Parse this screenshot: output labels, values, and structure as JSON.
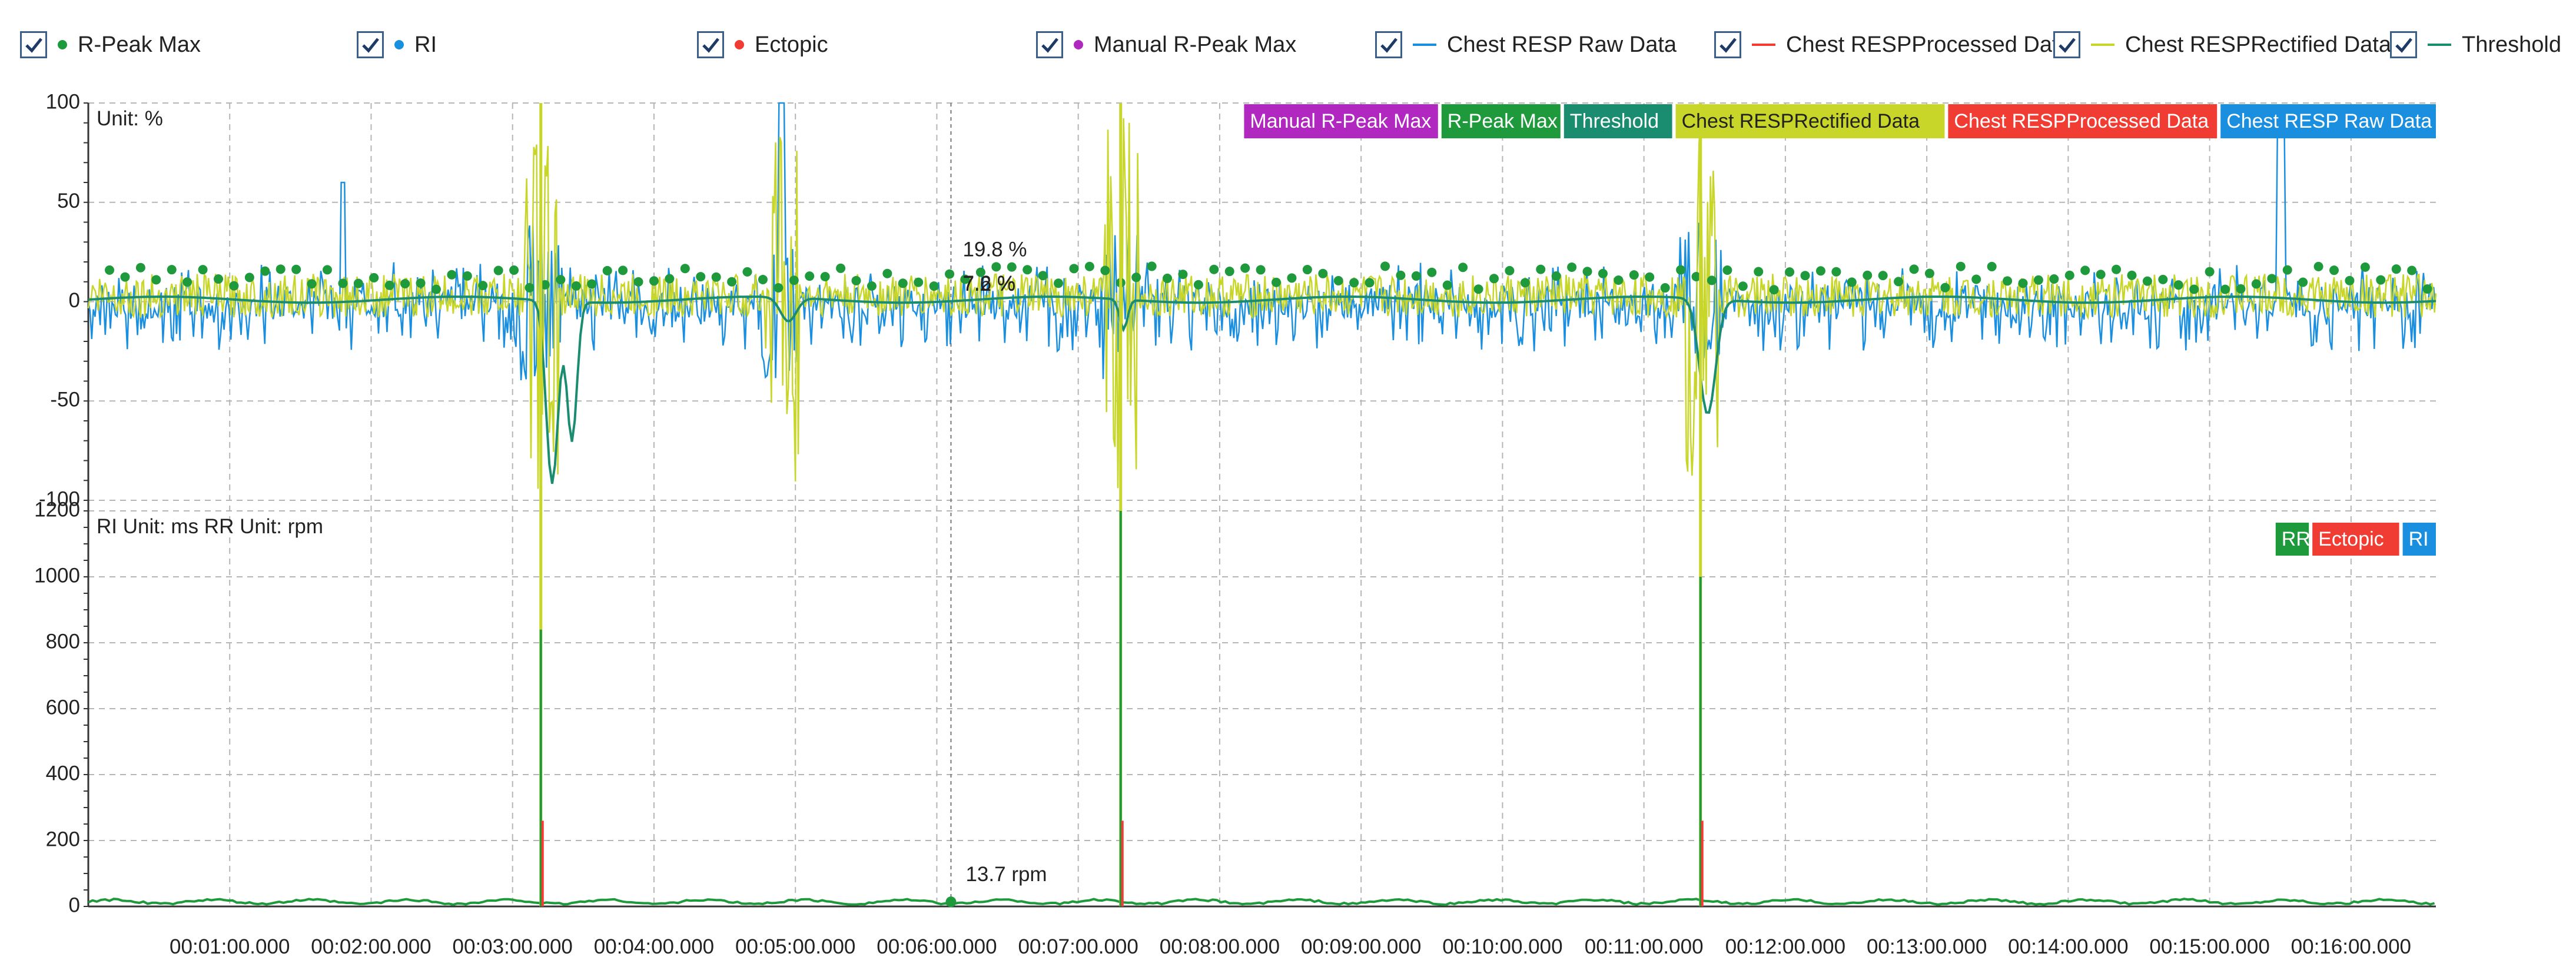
{
  "legend": [
    {
      "label": "R-Peak Max",
      "color": "#1e9a3c",
      "marker": "dot",
      "checked": true
    },
    {
      "label": "RI",
      "color": "#1a8fe0",
      "marker": "dot",
      "checked": true
    },
    {
      "label": "Ectopic",
      "color": "#f03c32",
      "marker": "dot",
      "checked": true
    },
    {
      "label": "Manual R-Peak Max",
      "color": "#b028c0",
      "marker": "dot",
      "checked": true
    },
    {
      "label": "Chest RESP Raw Data",
      "color": "#1a8fe0",
      "marker": "line",
      "checked": true
    },
    {
      "label": "Chest RESPProcessed Data",
      "color": "#f03c32",
      "marker": "line",
      "checked": true
    },
    {
      "label": "Chest RESPRectified Data",
      "color": "#c8d62a",
      "marker": "line",
      "checked": true
    },
    {
      "label": "Threshold",
      "color": "#1a8c70",
      "marker": "line",
      "checked": true
    }
  ],
  "chart_data": [
    {
      "type": "line",
      "panel": "top",
      "unit_label": "Unit: %",
      "ylim": [
        -100,
        100
      ],
      "yticks": [
        "100",
        "50",
        "0",
        "-50",
        "-100"
      ],
      "grid": true,
      "legend_position": "top-right",
      "series_labels": [
        {
          "name": "Manual R-Peak Max",
          "color": "#b028c0",
          "text_color": "#ffffff"
        },
        {
          "name": "R-Peak Max",
          "color": "#1e9a3c",
          "text_color": "#ffffff"
        },
        {
          "name": "Threshold",
          "color": "#1a8c70",
          "text_color": "#ffffff"
        },
        {
          "name": "Chest RESPRectified Data",
          "color": "#c8d62a",
          "text_color": "#222222"
        },
        {
          "name": "Chest RESPProcessed Data",
          "color": "#f03c32",
          "text_color": "#ffffff"
        },
        {
          "name": "Chest RESP Raw Data",
          "color": "#1a8fe0",
          "text_color": "#ffffff"
        }
      ],
      "annotations": [
        "19.8 %",
        "7.2 %",
        "7.6 %"
      ],
      "events_minutes": [
        3.2,
        4.9,
        7.3,
        11.4
      ],
      "series": [
        {
          "name": "Chest RESP Raw Data",
          "color": "#1a8fe0",
          "values_hint": {
            "baseline": 0,
            "noise": [
              -20,
              20
            ],
            "spikes": [
              {
                "t": 1.8,
                "y": 60
              },
              {
                "t": 4.9,
                "y": 100
              },
              {
                "t": 15.5,
                "y": 88
              }
            ]
          }
        },
        {
          "name": "Chest RESPRectified Data",
          "color": "#c8d62a",
          "values_hint": {
            "baseline": 2,
            "noise": [
              -10,
              15
            ]
          }
        },
        {
          "name": "Threshold",
          "color": "#1a8c70",
          "values_hint": {
            "baseline": 0,
            "dips": [
              {
                "t": 3.3,
                "y": -90
              },
              {
                "t": 11.4,
                "y": -60
              }
            ]
          }
        },
        {
          "name": "R-Peak Max",
          "color": "#1e9a3c",
          "values_hint": {
            "range": [
              5,
              20
            ]
          }
        }
      ]
    },
    {
      "type": "line",
      "panel": "bottom",
      "unit_label": "RI Unit: ms RR Unit: rpm",
      "ylim": [
        0,
        1200
      ],
      "yticks": [
        "1200",
        "1000",
        "800",
        "600",
        "400",
        "200",
        "0"
      ],
      "grid": true,
      "legend_position": "top-right",
      "series_labels": [
        {
          "name": "RR",
          "color": "#1e9a3c",
          "text_color": "#ffffff"
        },
        {
          "name": "Ectopic",
          "color": "#f03c32",
          "text_color": "#ffffff"
        },
        {
          "name": "RI",
          "color": "#1a8fe0",
          "text_color": "#ffffff"
        }
      ],
      "annotations": [
        "13.7 rpm"
      ],
      "spikes": [
        {
          "t": 3.2,
          "y": 840
        },
        {
          "t": 7.3,
          "y": 1200
        },
        {
          "t": 11.4,
          "y": 1000
        }
      ],
      "x_ticks": [
        "00:01:00.000",
        "00:02:00.000",
        "00:03:00.000",
        "00:04:00.000",
        "00:05:00.000",
        "00:06:00.000",
        "00:07:00.000",
        "00:08:00.000",
        "00:09:00.000",
        "00:10:00.000",
        "00:11:00.000",
        "00:12:00.000",
        "00:13:00.000",
        "00:14:00.000",
        "00:15:00.000",
        "00:16:00.000"
      ],
      "x_range_minutes": [
        0,
        16.6
      ]
    }
  ]
}
